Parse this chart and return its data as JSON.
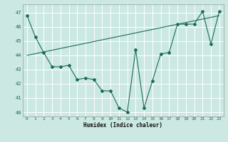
{
  "xlabel": "Humidex (Indice chaleur)",
  "bg_color": "#cce8e2",
  "grid_color": "#b0d8d0",
  "line_color": "#1a6b5a",
  "xlim": [
    -0.5,
    23.5
  ],
  "ylim": [
    39.7,
    47.6
  ],
  "yticks": [
    40,
    41,
    42,
    43,
    44,
    45,
    46,
    47
  ],
  "xticks": [
    0,
    1,
    2,
    3,
    4,
    5,
    6,
    7,
    8,
    9,
    10,
    11,
    12,
    13,
    14,
    15,
    16,
    17,
    18,
    19,
    20,
    21,
    22,
    23
  ],
  "series1_x": [
    0,
    1,
    2,
    3,
    4,
    5,
    6,
    7,
    8,
    9,
    10,
    11,
    12,
    13,
    14,
    15,
    16,
    17,
    18,
    19,
    20,
    21,
    22,
    23
  ],
  "series1_y": [
    46.8,
    45.3,
    44.2,
    43.2,
    43.2,
    43.3,
    42.3,
    42.4,
    42.3,
    41.5,
    41.5,
    40.3,
    40.0,
    44.4,
    40.3,
    42.2,
    44.1,
    44.2,
    46.2,
    46.2,
    46.2,
    47.1,
    44.8,
    47.1
  ],
  "trend_x": [
    0,
    23
  ],
  "trend_y": [
    44.0,
    46.8
  ]
}
